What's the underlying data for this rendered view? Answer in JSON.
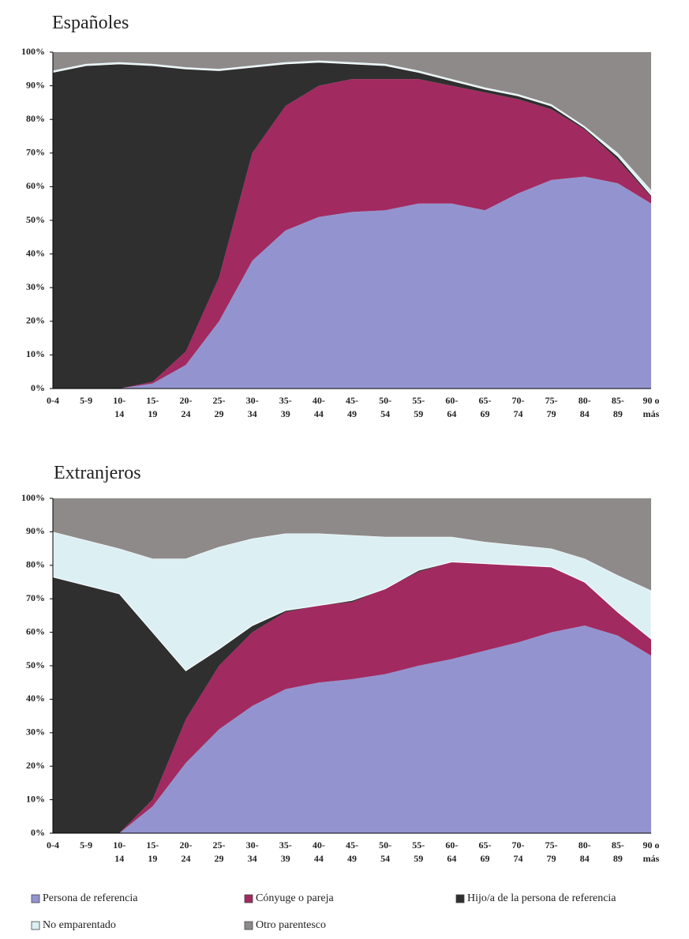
{
  "chart_data": [
    {
      "type": "stacked_area",
      "title": "Españoles",
      "categories": [
        "0-4",
        "5-9",
        "10-\n14",
        "15-\n19",
        "20-\n24",
        "25-\n29",
        "30-\n34",
        "35-\n39",
        "40-\n44",
        "45-\n49",
        "50-\n54",
        "55-\n59",
        "60-\n64",
        "65-\n69",
        "70-\n74",
        "75-\n79",
        "80-\n84",
        "85-\n89",
        "90 o\nmás"
      ],
      "ylim": [
        0,
        100
      ],
      "yticks": [
        {
          "value": 0,
          "label": "0%"
        },
        {
          "value": 10,
          "label": "10%"
        },
        {
          "value": 20,
          "label": "20%"
        },
        {
          "value": 30,
          "label": "30%"
        },
        {
          "value": 40,
          "label": "40%"
        },
        {
          "value": 50,
          "label": "50%"
        },
        {
          "value": 60,
          "label": "60%"
        },
        {
          "value": 70,
          "label": "70%"
        },
        {
          "value": 80,
          "label": "80%"
        },
        {
          "value": 90,
          "label": "90%"
        },
        {
          "value": 100,
          "label": "100%"
        }
      ],
      "series": [
        {
          "color": "#9394cf",
          "values": [
            0,
            0,
            0,
            1.5,
            7,
            20,
            38,
            47,
            51,
            52.5,
            53,
            55,
            55,
            53,
            58,
            62,
            63,
            61,
            55
          ]
        },
        {
          "color": "#a12a60",
          "values": [
            0,
            0,
            0,
            0.5,
            4,
            13,
            32,
            37,
            39,
            39.5,
            39,
            37,
            35,
            35,
            28,
            21,
            14,
            7,
            2
          ]
        },
        {
          "color": "#2f2f2f",
          "values": [
            94,
            96,
            96.5,
            94,
            84,
            61.5,
            25.5,
            12.5,
            7,
            4.5,
            4,
            2,
            1.5,
            1,
            1,
            1,
            0.5,
            1,
            0.5
          ]
        },
        {
          "color": "#dcf0f4",
          "values": [
            0.5,
            0.5,
            0.5,
            0.5,
            0.5,
            0.5,
            0.5,
            0.5,
            0.5,
            0.5,
            0.5,
            0.5,
            0.5,
            0.5,
            0.5,
            0.5,
            0.5,
            1,
            1.5
          ]
        },
        {
          "color": "#8e8a8a",
          "values": [
            5.5,
            3.5,
            3,
            3.5,
            4.5,
            5,
            4,
            3,
            2.5,
            3,
            3.5,
            5.5,
            8,
            10.5,
            12.5,
            15.5,
            22,
            30,
            41
          ]
        }
      ]
    },
    {
      "type": "stacked_area",
      "title": "Extranjeros",
      "categories": [
        "0-4",
        "5-9",
        "10-\n14",
        "15-\n19",
        "20-\n24",
        "25-\n29",
        "30-\n34",
        "35-\n39",
        "40-\n44",
        "45-\n49",
        "50-\n54",
        "55-\n59",
        "60-\n64",
        "65-\n69",
        "70-\n74",
        "75-\n79",
        "80-\n84",
        "85-\n89",
        "90 o\nmás"
      ],
      "ylim": [
        0,
        100
      ],
      "yticks": [
        {
          "value": 0,
          "label": "0%"
        },
        {
          "value": 10,
          "label": "10%"
        },
        {
          "value": 20,
          "label": "20%"
        },
        {
          "value": 30,
          "label": "30%"
        },
        {
          "value": 40,
          "label": "40%"
        },
        {
          "value": 50,
          "label": "50%"
        },
        {
          "value": 60,
          "label": "60%"
        },
        {
          "value": 70,
          "label": "70%"
        },
        {
          "value": 80,
          "label": "80%"
        },
        {
          "value": 90,
          "label": "90%"
        },
        {
          "value": 100,
          "label": "100%"
        }
      ],
      "legend": "bottom",
      "series": [
        {
          "name": "Persona de referencia",
          "color": "#9394cf",
          "values": [
            0,
            0,
            0,
            8,
            21,
            31,
            38,
            43,
            45,
            46,
            47.5,
            50,
            52,
            54.5,
            57,
            60,
            62,
            59,
            53
          ]
        },
        {
          "name": "Cónyuge o pareja",
          "color": "#a12a60",
          "values": [
            0,
            0,
            0,
            2,
            13,
            19,
            22,
            23,
            23,
            23,
            25.5,
            28,
            29,
            26,
            23,
            19.5,
            13,
            7,
            5
          ]
        },
        {
          "name": "Hijo/a de la persona de referencia",
          "color": "#2f2f2f",
          "values": [
            76.5,
            74,
            71.5,
            50,
            14.5,
            5,
            2,
            0.5,
            0,
            0.5,
            0,
            0.5,
            0,
            0,
            0,
            0,
            0,
            0,
            0
          ]
        },
        {
          "name": "No emparentado",
          "color": "#dcf0f4",
          "values": [
            13.5,
            13.5,
            13.5,
            22,
            33.5,
            30.5,
            26,
            23,
            21.5,
            19.5,
            15.5,
            10,
            7.5,
            6.5,
            6,
            5.5,
            7,
            11,
            14.5
          ]
        },
        {
          "name": "Otro parentesco",
          "color": "#8e8a8a",
          "values": [
            10,
            12.5,
            15,
            18,
            18,
            14.5,
            12,
            10.5,
            10.5,
            11,
            11.5,
            11.5,
            11.5,
            13,
            14,
            15,
            18,
            23,
            27.5
          ]
        }
      ]
    }
  ]
}
